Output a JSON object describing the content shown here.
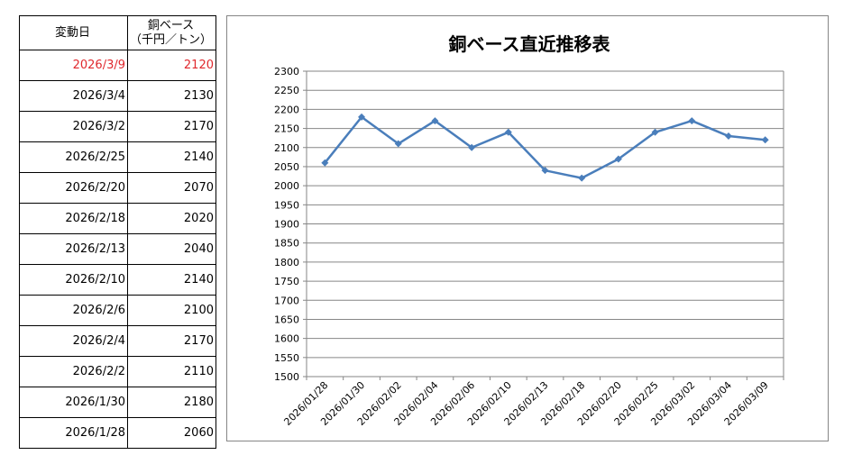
{
  "table": {
    "header": {
      "date": "変動日",
      "price_line1": "銅ベース",
      "price_line2": "（千円／トン）"
    },
    "rows": [
      {
        "date": "2026/3/9",
        "price": "2120",
        "highlight": true
      },
      {
        "date": "2026/3/4",
        "price": "2130"
      },
      {
        "date": "2026/3/2",
        "price": "2170"
      },
      {
        "date": "2026/2/25",
        "price": "2140"
      },
      {
        "date": "2026/2/20",
        "price": "2070"
      },
      {
        "date": "2026/2/18",
        "price": "2020"
      },
      {
        "date": "2026/2/13",
        "price": "2040"
      },
      {
        "date": "2026/2/10",
        "price": "2140"
      },
      {
        "date": "2026/2/6",
        "price": "2100"
      },
      {
        "date": "2026/2/4",
        "price": "2170"
      },
      {
        "date": "2026/2/2",
        "price": "2110"
      },
      {
        "date": "2026/1/30",
        "price": "2180"
      },
      {
        "date": "2026/1/28",
        "price": "2060"
      }
    ]
  },
  "colors": {
    "highlight": "#e0282d",
    "series": "#4a7ebb",
    "grid": "#868686"
  },
  "chart_data": {
    "type": "line",
    "title": "銅ベース直近推移表",
    "xlabel": "",
    "ylabel": "",
    "categories": [
      "2026/01/28",
      "2026/01/30",
      "2026/02/02",
      "2026/02/04",
      "2026/02/06",
      "2026/02/10",
      "2026/02/13",
      "2026/02/18",
      "2026/02/20",
      "2026/02/25",
      "2026/03/02",
      "2026/03/04",
      "2026/03/09"
    ],
    "series": [
      {
        "values": [
          2060,
          2180,
          2110,
          2170,
          2100,
          2140,
          2040,
          2020,
          2070,
          2140,
          2170,
          2130,
          2120
        ]
      }
    ],
    "ylim": [
      1500,
      2300
    ],
    "ystep": 50,
    "grid": true,
    "legend": "none",
    "marker": "diamond"
  }
}
